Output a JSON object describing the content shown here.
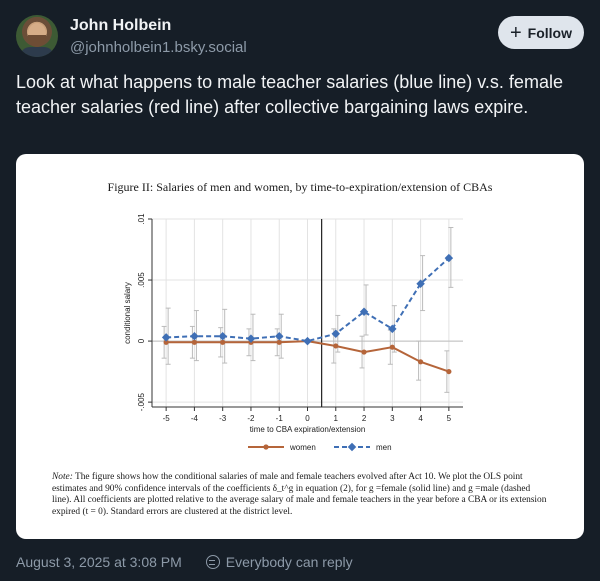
{
  "post": {
    "author_name": "John Holbein",
    "author_handle": "@johnholbein1.bsky.social",
    "follow_label": "Follow",
    "text": "Look at what happens to male teacher salaries (blue line) v.s. female teacher salaries (red line) after collective bargaining laws expire.",
    "timestamp": "August 3, 2025 at 3:08 PM",
    "reply_setting": "Everybody can reply"
  },
  "figure": {
    "note_label": "Note:",
    "note_text": " The figure shows how the conditional salaries of male and female teachers evolved after Act 10. We plot the OLS point estimates and 90% confidence intervals of the coefficients δ_t^g in equation (2), for g =female (solid line) and g =male (dashed line). All coefficients are plotted relative to the average salary of male and female teachers in the year before a CBA or its extension expired (t = 0). Standard errors are clustered at the district level."
  },
  "chart_data": {
    "type": "line",
    "title": "Figure II: Salaries of men and women, by time-to-expiration/extension of CBAs",
    "xlabel": "time to CBA expiration/extension",
    "ylabel": "conditional salary",
    "x": [
      -5,
      -4,
      -3,
      -2,
      -1,
      0,
      1,
      2,
      3,
      4,
      5
    ],
    "x_ticks": [
      "-5",
      "-4",
      "-3",
      "-2",
      "-1",
      "0",
      "1",
      "2",
      "3",
      "4",
      "5"
    ],
    "ylim": [
      -0.005,
      0.01
    ],
    "y_ticks": [
      "-.005",
      "0",
      ".005",
      ".01"
    ],
    "y_tick_values": [
      -0.005,
      0,
      0.005,
      0.01
    ],
    "vertical_line_x": 0.5,
    "grid": true,
    "legend_position": "bottom",
    "series": [
      {
        "name": "women",
        "style": "solid",
        "color": "#b5653a",
        "values": [
          -0.0001,
          -0.0001,
          -0.0001,
          -0.0001,
          -0.0001,
          0.0,
          -0.0004,
          -0.0009,
          -0.0005,
          -0.0017,
          -0.0025
        ],
        "ci_low": [
          -0.0014,
          -0.0014,
          -0.0013,
          -0.0012,
          -0.0012,
          0.0,
          -0.0018,
          -0.0022,
          -0.0019,
          -0.0032,
          -0.0042
        ],
        "ci_high": [
          0.0012,
          0.0012,
          0.0011,
          0.001,
          0.001,
          0.0,
          0.001,
          0.0004,
          0.0009,
          0.0,
          -0.0008
        ]
      },
      {
        "name": "men",
        "style": "dashed",
        "color": "#3f6fb5",
        "values": [
          0.0003,
          0.0004,
          0.0004,
          0.0002,
          0.0004,
          0.0,
          0.0006,
          0.0024,
          0.001,
          0.0047,
          0.0068
        ],
        "ci_low": [
          -0.0019,
          -0.0016,
          -0.0018,
          -0.0016,
          -0.0014,
          0.0,
          -0.0009,
          0.0005,
          -0.0009,
          0.0025,
          0.0044
        ],
        "ci_high": [
          0.0027,
          0.0025,
          0.0026,
          0.0022,
          0.0022,
          0.0,
          0.0021,
          0.0046,
          0.0029,
          0.007,
          0.0093
        ]
      }
    ],
    "colors": {
      "grid": "#e3e3e3",
      "axis": "#333333"
    }
  }
}
